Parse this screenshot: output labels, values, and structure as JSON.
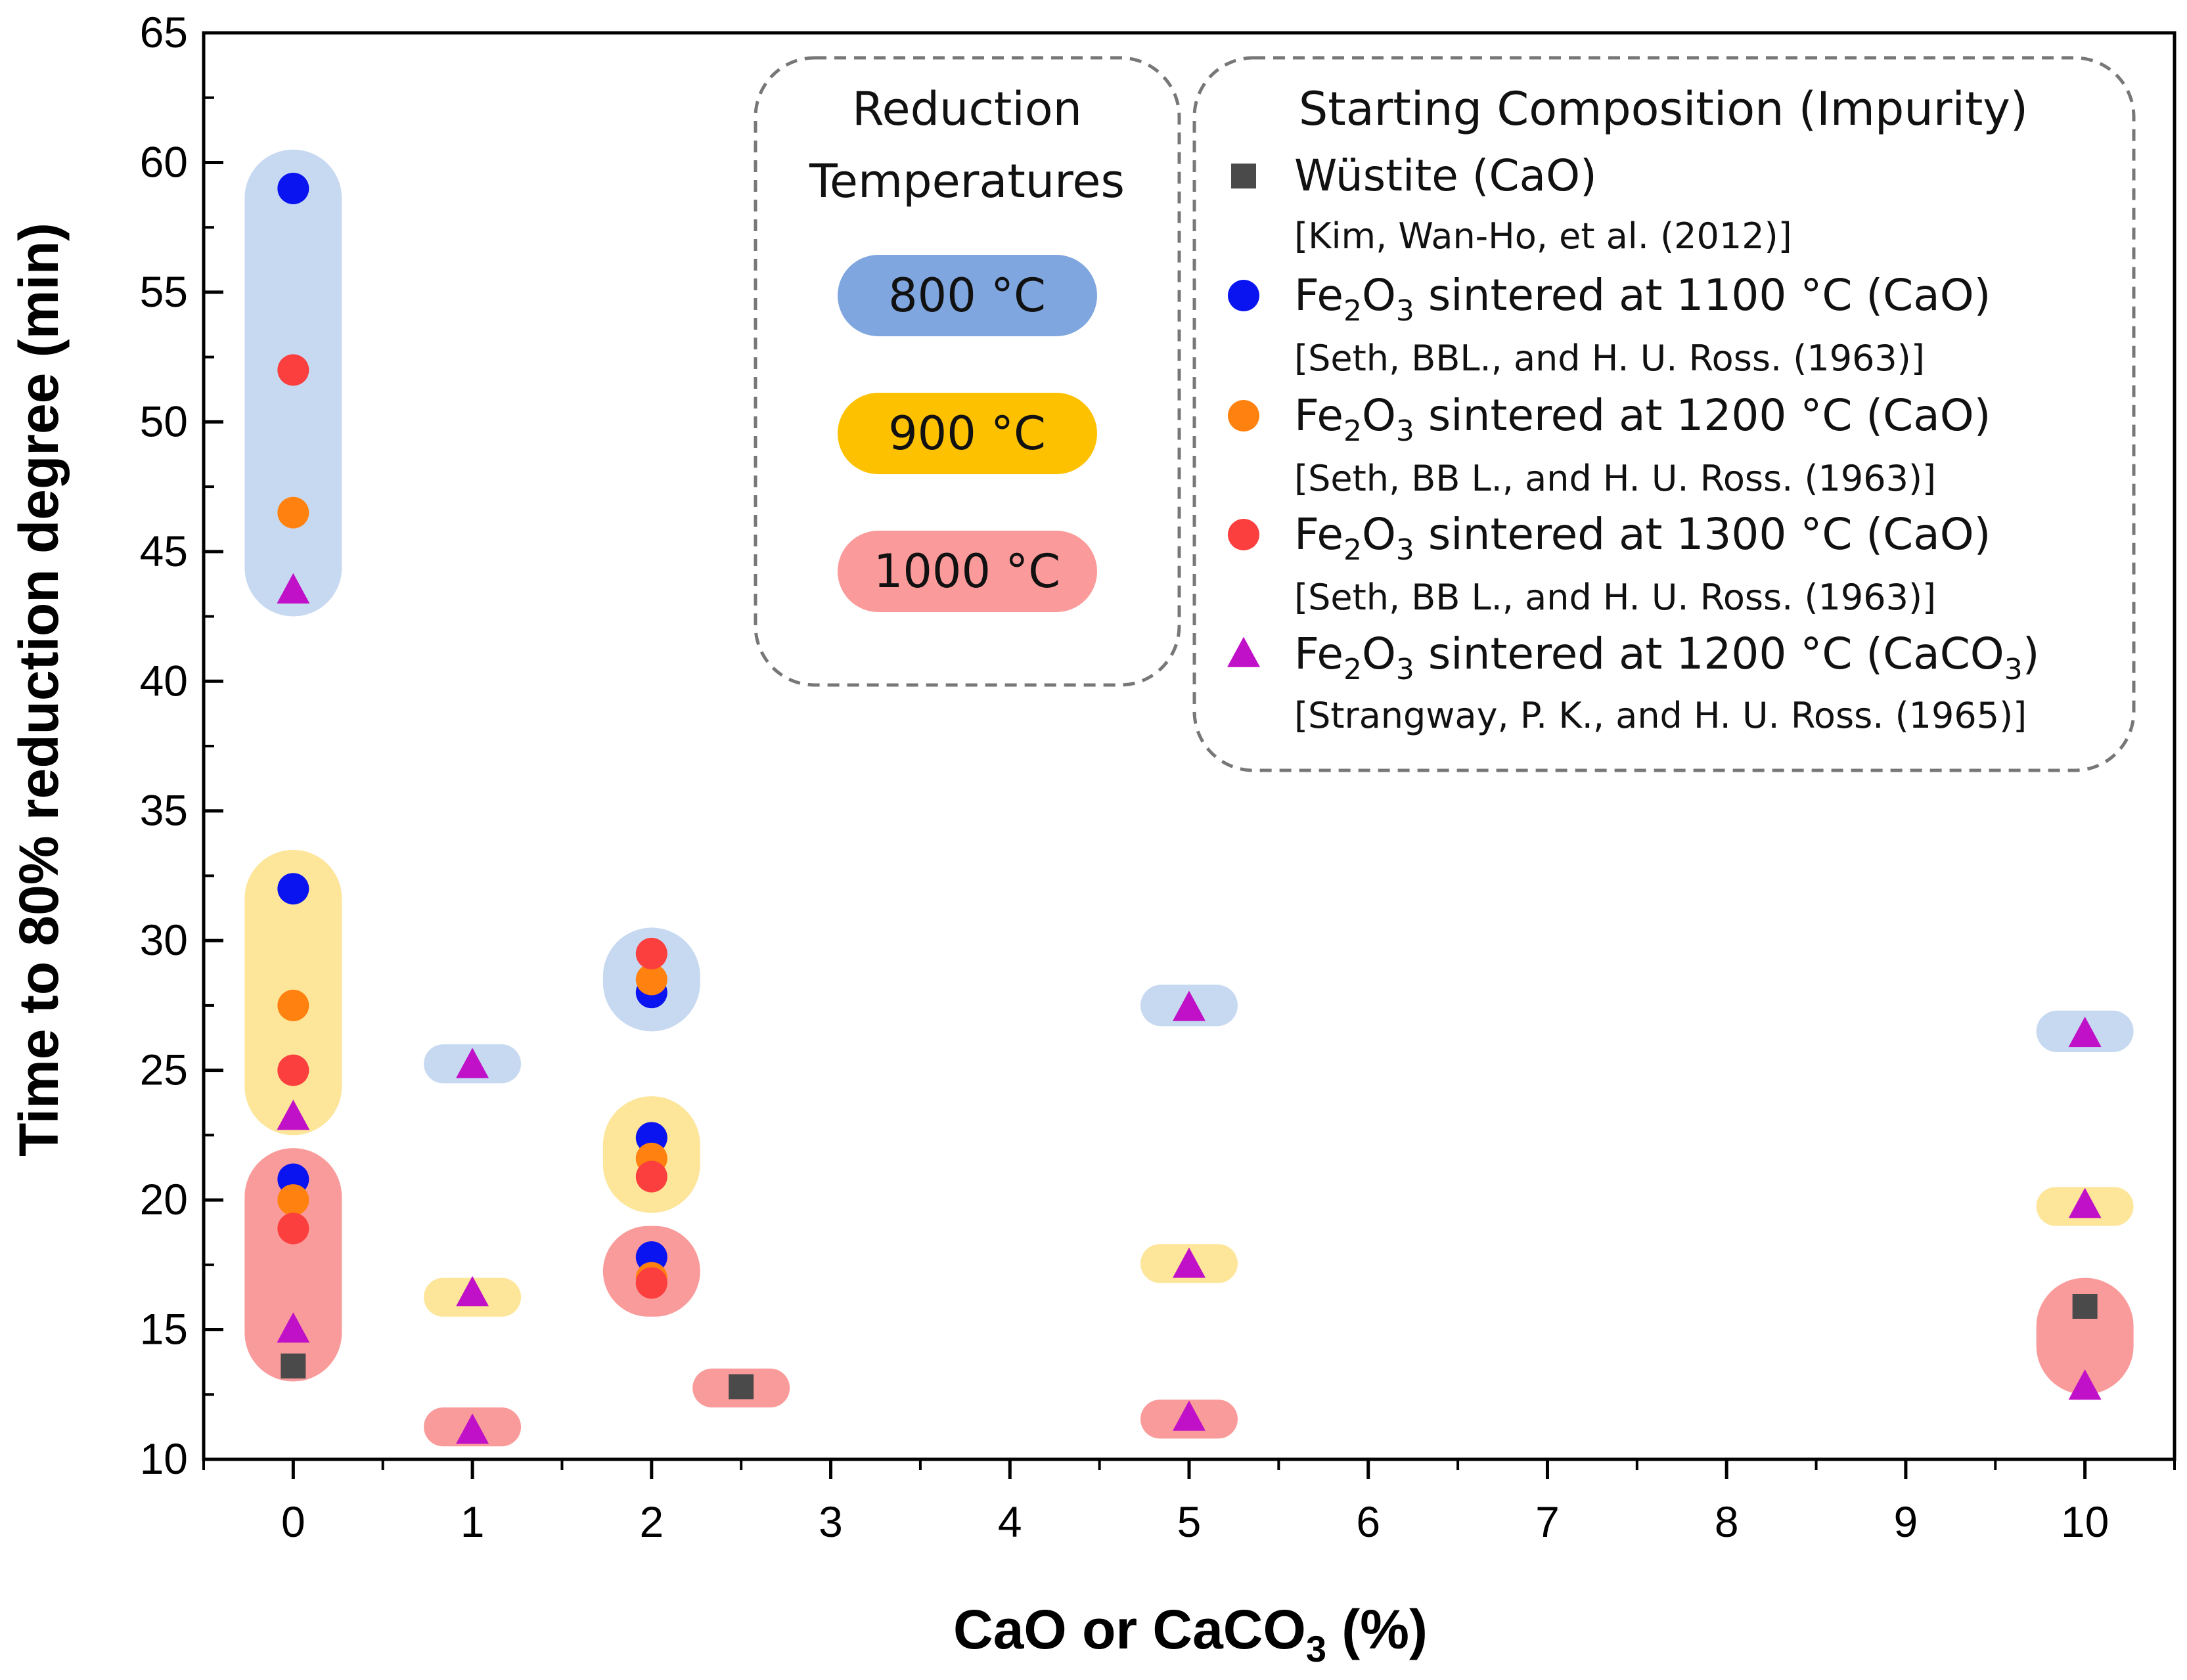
{
  "chart_data": {
    "type": "scatter",
    "title": "",
    "xlabel": {
      "main": "CaO or CaCO",
      "sub": "3",
      "tail": " (%)"
    },
    "ylabel": "Time to 80% reduction degree (min)",
    "xlim": [
      -0.5,
      10.5
    ],
    "ylim": [
      10,
      65
    ],
    "x_tick_labels": [
      "0",
      "1",
      "2",
      "3",
      "4",
      "5",
      "6",
      "7",
      "8",
      "9",
      "10"
    ],
    "y_tick_labels": [
      "10",
      "15",
      "20",
      "25",
      "30",
      "35",
      "40",
      "45",
      "50",
      "55",
      "60",
      "65"
    ],
    "colors": {
      "wustite": "#4a4a4a",
      "fe1100": "#0a14f0",
      "fe1200": "#ff8210",
      "fe1300": "#fb3e3e",
      "caco3": "#c010c8",
      "band_800": "#c7d9f1",
      "band_900": "#fde59a",
      "band_1000": "#fa9b9b",
      "chip_800": "#7fa6df",
      "chip_900": "#fdc100",
      "chip_1000": "#fb9a9a"
    },
    "temperature_bands": [
      {
        "temperature": "800 °C",
        "x": 0,
        "y_range": [
          42.5,
          60.5
        ]
      },
      {
        "temperature": "900 °C",
        "x": 0,
        "y_range": [
          22.5,
          33.5
        ]
      },
      {
        "temperature": "1000 °C",
        "x": 0,
        "y_range": [
          13,
          22
        ]
      },
      {
        "temperature": "800 °C",
        "x": 1,
        "y_range": [
          24.5,
          26
        ]
      },
      {
        "temperature": "900 °C",
        "x": 1,
        "y_range": [
          15.5,
          17
        ]
      },
      {
        "temperature": "1000 °C",
        "x": 1,
        "y_range": [
          10.5,
          12
        ]
      },
      {
        "temperature": "800 °C",
        "x": 2,
        "y_range": [
          26.5,
          30.5
        ]
      },
      {
        "temperature": "900 °C",
        "x": 2,
        "y_range": [
          19.5,
          24
        ]
      },
      {
        "temperature": "1000 °C",
        "x": 2,
        "y_range": [
          15.5,
          19
        ]
      },
      {
        "temperature": "1000 °C",
        "x": 2.5,
        "y_range": [
          12,
          13.5
        ]
      },
      {
        "temperature": "800 °C",
        "x": 5,
        "y_range": [
          26.7,
          28.3
        ]
      },
      {
        "temperature": "900 °C",
        "x": 5,
        "y_range": [
          16.8,
          18.3
        ]
      },
      {
        "temperature": "1000 °C",
        "x": 5,
        "y_range": [
          10.8,
          12.3
        ]
      },
      {
        "temperature": "800 °C",
        "x": 10,
        "y_range": [
          25.7,
          27.3
        ]
      },
      {
        "temperature": "900 °C",
        "x": 10,
        "y_range": [
          19,
          20.5
        ]
      },
      {
        "temperature": "1000 °C",
        "x": 10,
        "y_range": [
          12.5,
          17
        ]
      }
    ],
    "series": [
      {
        "name": "Wüstite (CaO)",
        "marker": "square",
        "color_key": "wustite",
        "points": [
          {
            "x": 0,
            "y": 13.6
          },
          {
            "x": 2.5,
            "y": 12.8
          },
          {
            "x": 10,
            "y": 15.9
          }
        ]
      },
      {
        "name": "Fe2O3 sintered at 1100 °C (CaO)",
        "marker": "circle",
        "color_key": "fe1100",
        "points": [
          {
            "x": 0,
            "y": 59
          },
          {
            "x": 0,
            "y": 32
          },
          {
            "x": 0,
            "y": 20.8
          },
          {
            "x": 2,
            "y": 28
          },
          {
            "x": 2,
            "y": 22.4
          },
          {
            "x": 2,
            "y": 17.8
          }
        ]
      },
      {
        "name": "Fe2O3 sintered at 1200 °C (CaO)",
        "marker": "circle",
        "color_key": "fe1200",
        "points": [
          {
            "x": 0,
            "y": 46.5
          },
          {
            "x": 0,
            "y": 27.5
          },
          {
            "x": 0,
            "y": 20
          },
          {
            "x": 2,
            "y": 28.5
          },
          {
            "x": 2,
            "y": 21.6
          },
          {
            "x": 2,
            "y": 17
          }
        ]
      },
      {
        "name": "Fe2O3 sintered at 1300 °C (CaO)",
        "marker": "circle",
        "color_key": "fe1300",
        "points": [
          {
            "x": 0,
            "y": 52
          },
          {
            "x": 0,
            "y": 25
          },
          {
            "x": 0,
            "y": 18.9
          },
          {
            "x": 2,
            "y": 29.5
          },
          {
            "x": 2,
            "y": 20.9
          },
          {
            "x": 2,
            "y": 16.8
          }
        ]
      },
      {
        "name": "Fe2O3 sintered at 1200 °C (CaCO3)",
        "marker": "triangle",
        "color_key": "caco3",
        "points": [
          {
            "x": 0,
            "y": 43.5
          },
          {
            "x": 0,
            "y": 23.2
          },
          {
            "x": 0,
            "y": 15
          },
          {
            "x": 1,
            "y": 25.2
          },
          {
            "x": 1,
            "y": 16.4
          },
          {
            "x": 1,
            "y": 11.1
          },
          {
            "x": 5,
            "y": 27.4
          },
          {
            "x": 5,
            "y": 17.5
          },
          {
            "x": 5,
            "y": 11.6
          },
          {
            "x": 10,
            "y": 26.4
          },
          {
            "x": 10,
            "y": 19.8
          },
          {
            "x": 10,
            "y": 12.8
          }
        ]
      }
    ],
    "legend_temperatures": {
      "title_line1": "Reduction",
      "title_line2": "Temperatures",
      "items": [
        {
          "label": "800 °C",
          "color_key": "chip_800"
        },
        {
          "label": "900 °C",
          "color_key": "chip_900"
        },
        {
          "label": "1000 °C",
          "color_key": "chip_1000"
        }
      ]
    },
    "legend_composition": {
      "title": "Starting Composition (Impurity)",
      "items": [
        {
          "marker": "square",
          "color_key": "wustite",
          "parts": [
            "Wüstite (CaO)"
          ],
          "ref": "[Kim, Wan-Ho, et al. (2012)]"
        },
        {
          "marker": "circle",
          "color_key": "fe1100",
          "parts": [
            "Fe",
            "2",
            "O",
            "3",
            " sintered at 1100 °C (CaO)"
          ],
          "ref": "[Seth, BBL., and H. U. Ross. (1963)]"
        },
        {
          "marker": "circle",
          "color_key": "fe1200",
          "parts": [
            "Fe",
            "2",
            "O",
            "3",
            " sintered at 1200 °C (CaO)"
          ],
          "ref": "[Seth, BB L., and H. U. Ross. (1963)]"
        },
        {
          "marker": "circle",
          "color_key": "fe1300",
          "parts": [
            "Fe",
            "2",
            "O",
            "3",
            " sintered at 1300 °C (CaO)"
          ],
          "ref": "[Seth, BB L., and H. U. Ross. (1963)]"
        },
        {
          "marker": "triangle",
          "color_key": "caco3",
          "parts": [
            "Fe",
            "2",
            "O",
            "3",
            " sintered at 1200 °C (CaCO",
            "3",
            ")"
          ],
          "ref": "[Strangway, P. K., and H. U. Ross. (1965)]"
        }
      ]
    }
  }
}
